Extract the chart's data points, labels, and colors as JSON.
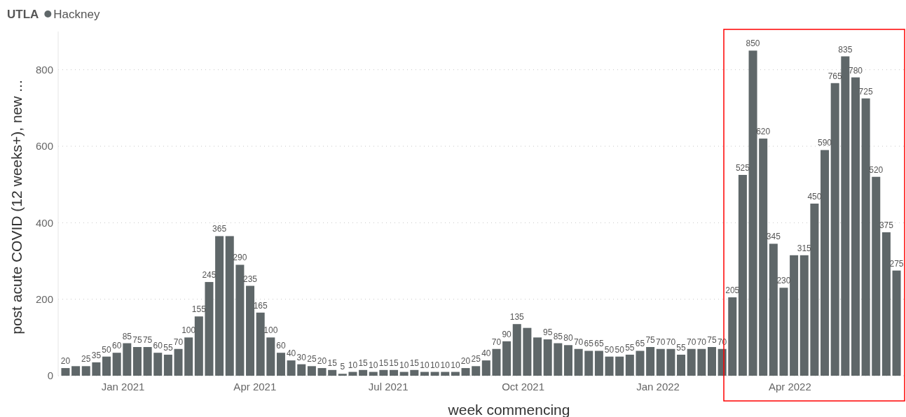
{
  "chart_data": {
    "type": "bar",
    "xlabel": "week commencing",
    "ylabel": "post acute COVID (12 weeks+), new ...",
    "legend_title": "UTLA",
    "legend": "top left",
    "grid": "y",
    "x": [
      "2020-11-23",
      "2020-11-30",
      "2020-12-07",
      "2020-12-14",
      "2020-12-21",
      "2020-12-28",
      "2021-01-04",
      "2021-01-11",
      "2021-01-18",
      "2021-01-25",
      "2021-02-01",
      "2021-02-08",
      "2021-02-15",
      "2021-02-22",
      "2021-03-01",
      "2021-03-08",
      "2021-03-15",
      "2021-03-22",
      "2021-03-29",
      "2021-04-05",
      "2021-04-12",
      "2021-04-19",
      "2021-04-26",
      "2021-05-03",
      "2021-05-10",
      "2021-05-17",
      "2021-05-24",
      "2021-05-31",
      "2021-06-07",
      "2021-06-14",
      "2021-06-21",
      "2021-06-28",
      "2021-07-05",
      "2021-07-12",
      "2021-07-19",
      "2021-07-26",
      "2021-08-02",
      "2021-08-09",
      "2021-08-16",
      "2021-08-23",
      "2021-08-30",
      "2021-09-06",
      "2021-09-13",
      "2021-09-20",
      "2021-09-27",
      "2021-10-04",
      "2021-10-11",
      "2021-10-18",
      "2021-10-25",
      "2021-11-01",
      "2021-11-08",
      "2021-11-15",
      "2021-11-22",
      "2021-11-29",
      "2021-12-06",
      "2021-12-13",
      "2021-12-20",
      "2021-12-27",
      "2022-01-03",
      "2022-01-10",
      "2022-01-17",
      "2022-01-24",
      "2022-01-31",
      "2022-02-07",
      "2022-02-14",
      "2022-02-21",
      "2022-02-28",
      "2022-03-07",
      "2022-03-14",
      "2022-03-21",
      "2022-03-28",
      "2022-04-04",
      "2022-04-11",
      "2022-04-18",
      "2022-04-25",
      "2022-05-02",
      "2022-05-09",
      "2022-05-16",
      "2022-05-23",
      "2022-05-30",
      "2022-06-06",
      "2022-06-13"
    ],
    "series": [
      {
        "name": "Hackney",
        "color": "#5f6769",
        "values": [
          20,
          25,
          25,
          35,
          50,
          60,
          85,
          75,
          75,
          60,
          55,
          70,
          100,
          155,
          245,
          365,
          365,
          290,
          235,
          165,
          100,
          60,
          40,
          30,
          25,
          20,
          15,
          5,
          10,
          15,
          10,
          15,
          15,
          10,
          15,
          10,
          10,
          10,
          10,
          20,
          25,
          40,
          70,
          90,
          135,
          125,
          100,
          95,
          85,
          80,
          70,
          65,
          65,
          50,
          50,
          55,
          65,
          75,
          70,
          70,
          55,
          70,
          70,
          75,
          70,
          205,
          525,
          850,
          620,
          345,
          230,
          315,
          315,
          450,
          590,
          765,
          835,
          780,
          725,
          520,
          375,
          275
        ],
        "value_labels": [
          "20",
          null,
          "25",
          "35",
          "50",
          "60",
          "85",
          "75",
          "75",
          "60",
          "55",
          "70",
          "100",
          "155",
          "245",
          "365",
          null,
          "290",
          "235",
          "165",
          "100",
          "60",
          "40",
          "30",
          "25",
          "20",
          "15",
          "5",
          "10",
          "15",
          "10",
          "15",
          "15",
          "10",
          "15",
          "10",
          "10",
          "10",
          "10",
          "20",
          "25",
          "40",
          "70",
          "90",
          "135",
          null,
          null,
          "95",
          "85",
          "80",
          "70",
          "65",
          "65",
          "50",
          "50",
          "55",
          "65",
          "75",
          "70",
          "70",
          "55",
          "70",
          "70",
          "75",
          "70",
          "205",
          "525",
          "850",
          "620",
          "345",
          "230",
          null,
          "315",
          "450",
          "590",
          "765",
          "835",
          "780",
          "725",
          "520",
          "375",
          "275"
        ]
      }
    ],
    "xlim": [
      "2020-11-18",
      "2022-06-18"
    ],
    "xticks": [
      {
        "value": "2021-01-01",
        "label": "Jan 2021"
      },
      {
        "value": "2021-04-01",
        "label": "Apr 2021"
      },
      {
        "value": "2021-07-01",
        "label": "Jul 2021"
      },
      {
        "value": "2021-10-01",
        "label": "Oct 2021"
      },
      {
        "value": "2022-01-01",
        "label": "Jan 2022"
      },
      {
        "value": "2022-04-01",
        "label": "Apr 2022"
      }
    ],
    "ylim": [
      0,
      900
    ],
    "yticks": [
      0,
      200,
      400,
      600,
      800
    ]
  }
}
